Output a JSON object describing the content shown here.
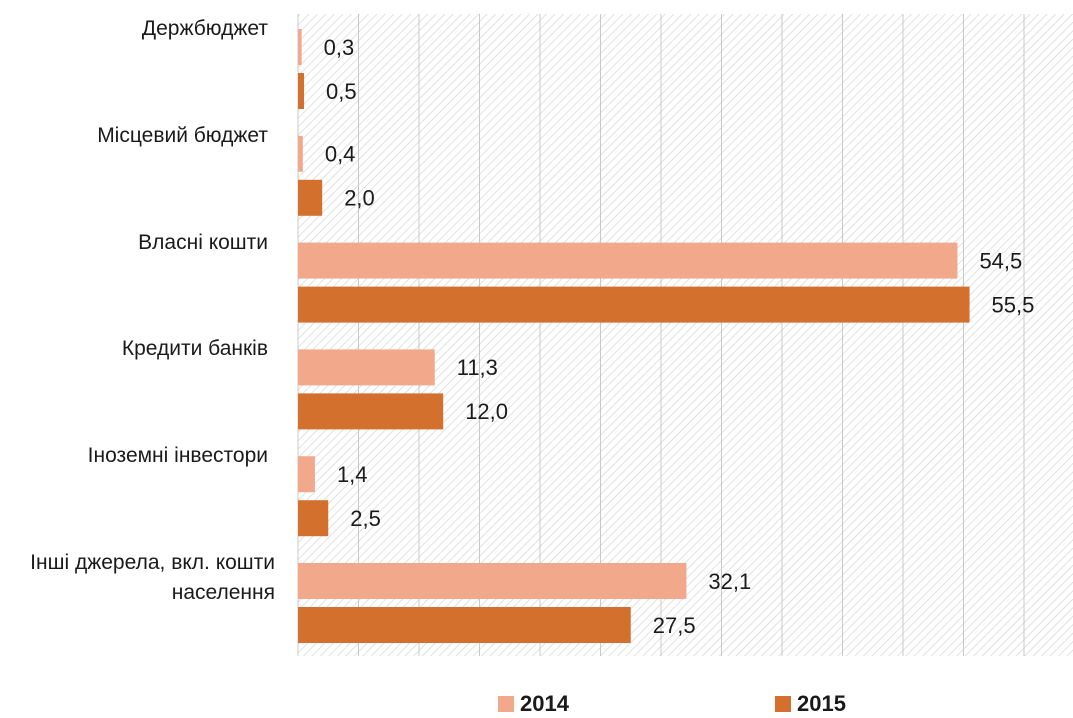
{
  "chart_data": {
    "type": "bar",
    "orientation": "horizontal",
    "categories": [
      "Держбюджет",
      "Місцевий бюджет",
      "Власні кошти",
      "Кредити банків",
      "Іноземні інвестори",
      "Інші джерела, вкл. кошти населення"
    ],
    "series": [
      {
        "name": "2014",
        "color": "#f2a98b",
        "values": [
          0.3,
          0.4,
          54.5,
          11.3,
          1.4,
          32.1
        ],
        "value_labels": [
          "0,3",
          "0,4",
          "54,5",
          "11,3",
          "1,4",
          "32,1"
        ]
      },
      {
        "name": "2015",
        "color": "#d4702e",
        "values": [
          0.5,
          2.0,
          55.5,
          12.0,
          2.5,
          27.5
        ],
        "value_labels": [
          "0,5",
          "2,0",
          "55,5",
          "12,0",
          "2,5",
          "27,5"
        ]
      }
    ],
    "xlim": [
      0,
      64
    ],
    "xticks": [
      0,
      5,
      10,
      15,
      20,
      25,
      30,
      35,
      40,
      45,
      50,
      55,
      60
    ],
    "grid": true,
    "legend": "bottom"
  }
}
